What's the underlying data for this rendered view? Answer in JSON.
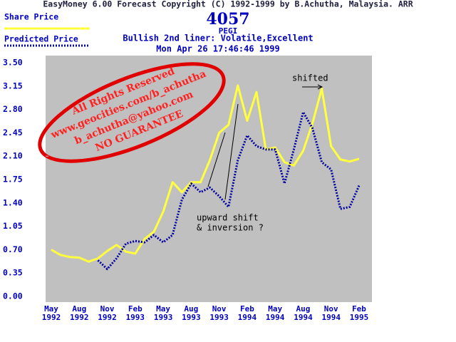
{
  "chart_data": {
    "type": "line",
    "title": "EasyMoney 6.00 Forecast Copyright (C) 1992-1999 by B.Achutha, Malaysia. ARR",
    "code": "4057",
    "name": "PEGI",
    "subtitle": "Bullish  2nd liner: Volatile,Excellent",
    "date": "Mon Apr 26 17:46:46 1999",
    "categories": [
      "May 1992",
      null,
      null,
      "Aug 1992",
      null,
      null,
      "Nov 1992",
      null,
      null,
      "Feb 1993",
      null,
      null,
      "May 1993",
      null,
      null,
      "Aug 1993",
      null,
      null,
      "Nov 1993",
      null,
      null,
      "Feb 1994",
      null,
      null,
      "May 1994",
      null,
      null,
      "Aug 1994",
      null,
      null,
      "Nov 1994",
      null,
      null,
      "Feb 1995"
    ],
    "series": [
      {
        "name": "Share Price",
        "color": "#ffff40",
        "values": [
          0.7,
          0.62,
          0.59,
          0.58,
          0.52,
          0.57,
          0.68,
          0.77,
          0.67,
          0.64,
          0.86,
          0.97,
          1.27,
          1.71,
          1.56,
          1.71,
          1.71,
          2.04,
          2.45,
          2.57,
          3.16,
          2.63,
          3.06,
          2.2,
          2.23,
          2.01,
          1.96,
          2.18,
          2.59,
          3.11,
          2.25,
          2.05,
          2.02,
          2.06
        ]
      },
      {
        "name": "Predicted Price",
        "color": "#0000a0",
        "values": [
          null,
          null,
          null,
          null,
          null,
          0.54,
          0.41,
          0.57,
          0.79,
          0.83,
          0.81,
          0.92,
          0.81,
          0.92,
          1.45,
          1.69,
          1.56,
          1.63,
          1.5,
          1.34,
          2.04,
          2.41,
          2.25,
          2.2,
          2.2,
          1.69,
          2.2,
          2.76,
          2.52,
          2.01,
          1.9,
          1.31,
          1.34,
          1.66
        ]
      }
    ],
    "ylim": [
      0,
      3.5
    ],
    "yticks": [
      {
        "value": 0,
        "label": "0.00"
      },
      0.35,
      {
        "value": 0.7,
        "label": "0.70"
      },
      1.05,
      {
        "value": 1.4,
        "label": "1.40"
      },
      1.75,
      {
        "value": 2.1,
        "label": "2.10"
      },
      2.45,
      {
        "value": 2.8,
        "label": "2.80"
      },
      3.15,
      {
        "value": 3.5,
        "label": "3.50"
      }
    ],
    "annotations": [
      "All Rights Reserved",
      "www.geocities.com/b_achutha",
      "b_achutha@yahoo.com",
      "NO GUARANTEE",
      "shifted",
      "upward shift",
      "& inversion ?"
    ]
  }
}
